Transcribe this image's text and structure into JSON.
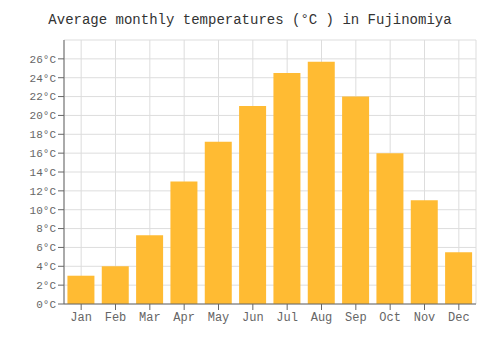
{
  "chart_data": {
    "type": "bar",
    "title": "Average monthly temperatures (°C ) in Fujinomiya",
    "categories": [
      "Jan",
      "Feb",
      "Mar",
      "Apr",
      "May",
      "Jun",
      "Jul",
      "Aug",
      "Sep",
      "Oct",
      "Nov",
      "Dec"
    ],
    "values": [
      3,
      4,
      7.3,
      13,
      17.2,
      21,
      24.5,
      25.7,
      22,
      16,
      11,
      5.5
    ],
    "color": "#FFBB33",
    "ylim": [
      0,
      28
    ],
    "yticks": [
      {
        "value": 0,
        "label": "0°C"
      },
      {
        "value": 2,
        "label": "2°C"
      },
      {
        "value": 4,
        "label": "4°C"
      },
      {
        "value": 6,
        "label": "6°C"
      },
      {
        "value": 8,
        "label": "8°C"
      },
      {
        "value": 10,
        "label": "10°C"
      },
      {
        "value": 12,
        "label": "12°C"
      },
      {
        "value": 14,
        "label": "14°C"
      },
      {
        "value": 16,
        "label": "16°C"
      },
      {
        "value": 18,
        "label": "18°C"
      },
      {
        "value": 20,
        "label": "20°C"
      },
      {
        "value": 22,
        "label": "22°C"
      },
      {
        "value": 24,
        "label": "24°C"
      },
      {
        "value": 26,
        "label": "26°C"
      }
    ],
    "grid": true
  }
}
